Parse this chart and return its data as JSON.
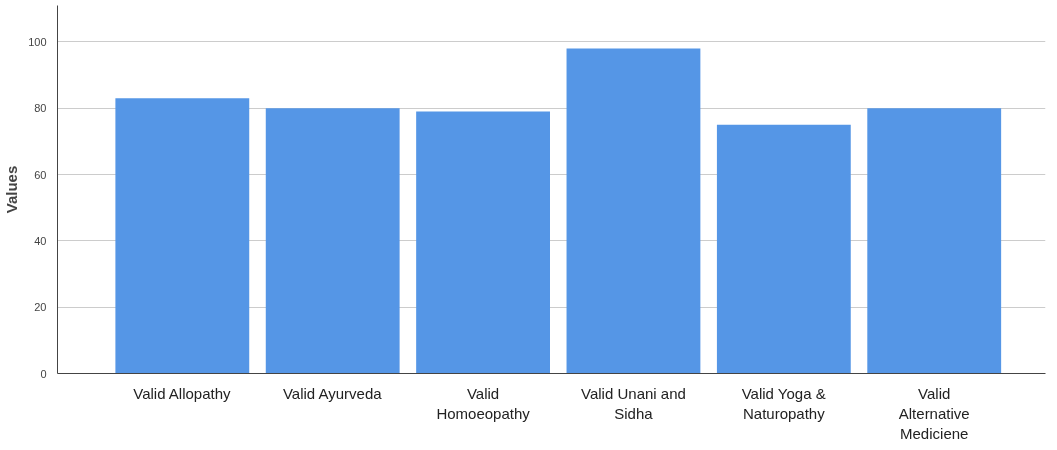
{
  "chart_data": {
    "type": "bar",
    "ylabel": "Values",
    "categories": [
      "Valid Allopathy",
      "Valid Ayurveda",
      "Valid Homoeopathy",
      "Valid Unani and Sidha",
      "Valid Yoga & Naturopathy",
      "Valid Alternative Mediciene"
    ],
    "values": [
      83,
      80,
      79,
      98,
      75,
      80
    ],
    "color": "#5596e6",
    "ylim": [
      0,
      111
    ],
    "yticks": [
      0,
      20,
      40,
      60,
      80,
      100
    ],
    "grid": "y"
  }
}
